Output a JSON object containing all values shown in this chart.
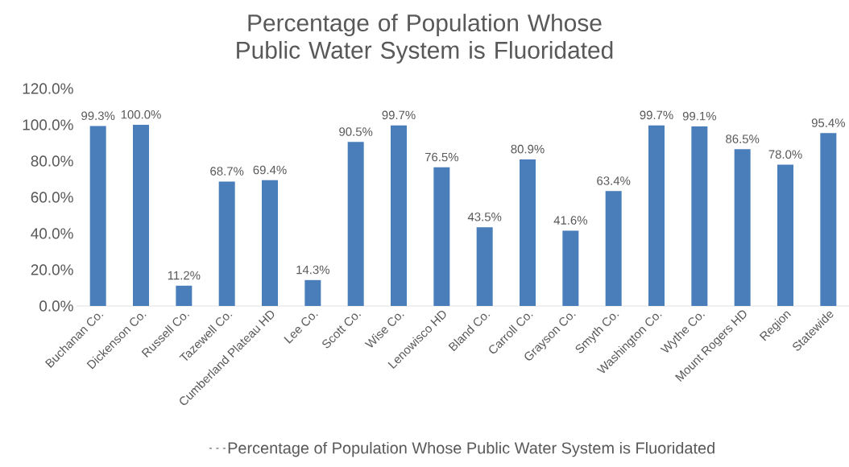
{
  "chart_data": {
    "type": "bar",
    "title": "Percentage of Population Whose Public Water System is Fluoridated",
    "categories": [
      "Buchanan Co.",
      "Dickenson Co.",
      "Russell Co.",
      "Tazewell Co.",
      "Cumberland Plateau HD",
      "Lee Co.",
      "Scott Co.",
      "Wise Co.",
      "Lenowisco HD",
      "Bland Co.",
      "Carroll Co.",
      "Grayson Co.",
      "Smyth Co.",
      "Washington Co.",
      "Wythe Co.",
      "Mount Rogers HD",
      "Region",
      "Statewide"
    ],
    "series": [
      {
        "name": "Percentage of Population Whose Public Water System is Fluoridated",
        "color": "#4a7ebb",
        "values": [
          99.3,
          100.0,
          11.2,
          68.7,
          69.4,
          14.3,
          90.5,
          99.7,
          76.5,
          43.5,
          80.9,
          41.6,
          63.4,
          99.7,
          99.1,
          86.5,
          78.0,
          95.4
        ],
        "value_labels": [
          "99.3%",
          "100.0%",
          "11.2%",
          "68.7%",
          "69.4%",
          "14.3%",
          "90.5%",
          "99.7%",
          "76.5%",
          "43.5%",
          "80.9%",
          "41.6%",
          "63.4%",
          "99.7%",
          "99.1%",
          "86.5%",
          "78.0%",
          "95.4%"
        ]
      }
    ],
    "ylim": [
      0,
      120
    ],
    "yticks": [
      {
        "value": 0,
        "label": "0.0%"
      },
      {
        "value": 20,
        "label": "20.0%"
      },
      {
        "value": 40,
        "label": "40.0%"
      },
      {
        "value": 60,
        "label": "60.0%"
      },
      {
        "value": 80,
        "label": "80.0%"
      },
      {
        "value": 100,
        "label": "100.0%"
      },
      {
        "value": 120,
        "label": "120.0%"
      }
    ],
    "grid": false,
    "legend": "bottom"
  }
}
